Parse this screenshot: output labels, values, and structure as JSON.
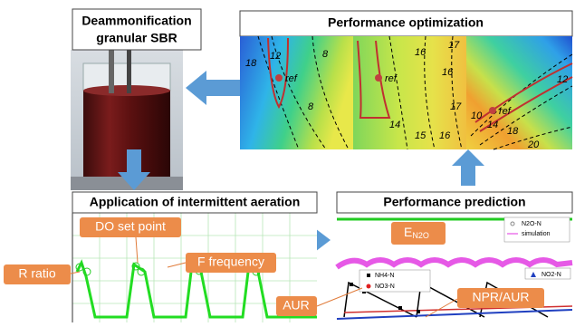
{
  "nodes": [
    {
      "label": [
        "Deammonification",
        "granular SBR"
      ]
    },
    {
      "label": "Performance optimization"
    },
    {
      "label": "Application of intermittent aeration"
    },
    {
      "label": "Performance prediction"
    }
  ],
  "callouts": [
    "DO set point",
    "R ratio",
    "F frequency",
    "AUR",
    "NPR/AUR"
  ],
  "e_n2o": {
    "main": "E",
    "sub": "N2O"
  },
  "contours": [
    {
      "labels": [
        "18",
        "12",
        "8",
        "8"
      ],
      "marker": "ref"
    },
    {
      "labels": [
        "16",
        "17",
        "14",
        "16",
        "17",
        "15",
        "16"
      ],
      "marker": "ref"
    },
    {
      "labels": [
        "12",
        "10",
        "14",
        "18",
        "20"
      ],
      "marker": "ref"
    }
  ],
  "legend": {
    "top": [
      "N2O-N",
      "simulation"
    ],
    "bottom": [
      "NH4-N",
      "NO3-N"
    ],
    "right": [
      "NO2-N"
    ]
  }
}
